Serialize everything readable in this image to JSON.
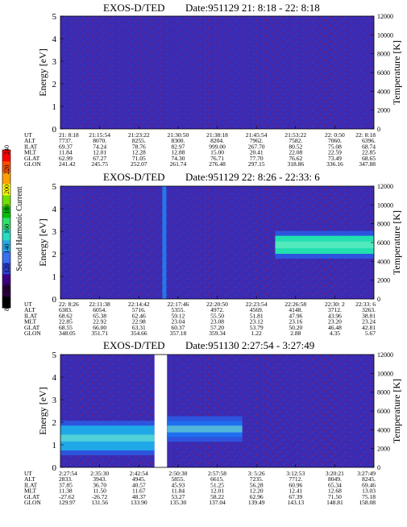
{
  "chart_data": {
    "type": "heatmap",
    "colorbar": {
      "label": "Second Harmonic Current",
      "ticks": [
        "80",
        "100",
        "120",
        "140",
        "160",
        "180",
        "200",
        "220",
        "240"
      ],
      "colors": [
        "#000000",
        "#2a003c",
        "#3d0080",
        "#2b3fd8",
        "#3a6ff0",
        "#25a8e8",
        "#27dcc0",
        "#2fe06a",
        "#00c000",
        "#70e000",
        "#ffff00",
        "#ffa000",
        "#ff5000",
        "#ff0000"
      ]
    },
    "panels": [
      {
        "title": "EXOS-D/TED",
        "date": "Date:951129  21: 8:18 - 22: 8:18",
        "ylabel_left": "Energy [eV]",
        "ylabel_right": "Temperature [K]",
        "y_left_ticks": [
          "0",
          "1",
          "2",
          "3",
          "4",
          "5"
        ],
        "y_right_ticks": [
          "0",
          "2000",
          "4000",
          "6000",
          "8000",
          "10000",
          "12000"
        ],
        "ylim_left": [
          0,
          5
        ],
        "ylim_right": [
          0,
          12000
        ],
        "row_labels": [
          "UT",
          "ALT",
          "ILAT",
          "MLT",
          "GLAT",
          "GLON"
        ],
        "columns": [
          [
            "21: 8:18",
            "7737.",
            "69.37",
            "11.84",
            "62.99",
            "241.42"
          ],
          [
            "21:15:54",
            "8070.",
            "74.24",
            "12.01",
            "67.27",
            "245.75"
          ],
          [
            "21:23:22",
            "8255.",
            "78.76",
            "12.28",
            "71.05",
            "252.07"
          ],
          [
            "21:30:50",
            "8300.",
            "82.97",
            "12.88",
            "74.30",
            "261.74"
          ],
          [
            "21:38:18",
            "8204.",
            "999.00",
            "15.00",
            "76.71",
            "276.48"
          ],
          [
            "21:45:54",
            "7962.",
            "267.70",
            "20.41",
            "77.70",
            "297.15"
          ],
          [
            "21:53:22",
            "7582.",
            "80.52",
            "22.08",
            "76.62",
            "318.86"
          ],
          [
            "22: 0:50",
            "7060.",
            "75.08",
            "22.59",
            "73.49",
            "336.16"
          ],
          [
            "22: 8:18",
            "6396.",
            "68.74",
            "22.85",
            "68.65",
            "347.88"
          ]
        ],
        "features": []
      },
      {
        "title": "EXOS-D/TED",
        "date": "Date:951129  22: 8:26 - 22:33: 6",
        "ylabel_left": "Energy [eV]",
        "ylabel_right": "Temperature [K]",
        "y_left_ticks": [
          "0",
          "1",
          "2",
          "3",
          "4",
          "5"
        ],
        "y_right_ticks": [
          "0",
          "2000",
          "4000",
          "6000",
          "8000",
          "10000",
          "12000"
        ],
        "ylim_left": [
          0,
          5
        ],
        "ylim_right": [
          0,
          12000
        ],
        "row_labels": [
          "UT",
          "ALT",
          "ILAT",
          "MLT",
          "GLAT",
          "GLON"
        ],
        "columns": [
          [
            "22: 8:26",
            "6383.",
            "68.62",
            "22.85",
            "68.55",
            "348.05"
          ],
          [
            "22:11:38",
            "6054.",
            "65.38",
            "22.92",
            "66.00",
            "351.71"
          ],
          [
            "22:14:42",
            "5716.",
            "62.46",
            "22.98",
            "63.31",
            "354.66"
          ],
          [
            "22:17:46",
            "5355.",
            "59.12",
            "23.04",
            "60.37",
            "357.18"
          ],
          [
            "22:20:50",
            "4972.",
            "55.50",
            "23.08",
            "57.20",
            "359.34"
          ],
          [
            "22:23:54",
            "4569.",
            "51.81",
            "23.12",
            "53.79",
            "1.22"
          ],
          [
            "22:26:58",
            "4148.",
            "47.96",
            "23.16",
            "50.20",
            "2.88"
          ],
          [
            "22:30: 2",
            "3712.",
            "43.96",
            "23.20",
            "46.48",
            "4.35"
          ],
          [
            "22:33: 6",
            "3263.",
            "38.81",
            "23.24",
            "42.81",
            "5.67"
          ]
        ],
        "features": [
          {
            "kind": "band",
            "from": 0.685,
            "to": 1.0,
            "energy_center": 2.4,
            "energy_width": 0.8,
            "color": "#22e0b0"
          },
          {
            "kind": "spike",
            "at": 0.33,
            "color": "#1a8af0"
          }
        ]
      },
      {
        "title": "EXOS-D/TED",
        "date": "Date:951130  2:27:54 - 3:27:49",
        "ylabel_left": "Energy [eV]",
        "ylabel_right": "Temperature [K]",
        "y_left_ticks": [
          "0",
          "1",
          "2",
          "3",
          "4",
          "5"
        ],
        "y_right_ticks": [
          "0",
          "2000",
          "4000",
          "6000",
          "8000",
          "10000",
          "12000"
        ],
        "ylim_left": [
          0,
          5
        ],
        "ylim_right": [
          0,
          12000
        ],
        "row_labels": [
          "UT",
          "ALT",
          "ILAT",
          "MLT",
          "GLAT",
          "GLON"
        ],
        "columns": [
          [
            "2:27:54",
            "2833.",
            "37.85",
            "11.38",
            "-27.62",
            "129.97"
          ],
          [
            "2:35:30",
            "3943.",
            "36.70",
            "11.50",
            "-26.72",
            "131.56"
          ],
          [
            "2:42:54",
            "4945.",
            "40.57",
            "11.67",
            "48.37",
            "133.90"
          ],
          [
            "2:50:30",
            "5855.",
            "45.93",
            "11.84",
            "53.27",
            "135.30"
          ],
          [
            "2:57:58",
            "6615.",
            "51.25",
            "12.01",
            "58.22",
            "137.04"
          ],
          [
            "3: 5:26",
            "7235.",
            "56.28",
            "12.20",
            "62.96",
            "139.49"
          ],
          [
            "3:12:53",
            "7712.",
            "60.96",
            "12.41",
            "67.39",
            "143.13"
          ],
          [
            "3:20:21",
            "8049.",
            "65.34",
            "12.68",
            "71.50",
            "148.81"
          ],
          [
            "3:27:49",
            "8245.",
            "69.46",
            "13.03",
            "75.18",
            "158.08"
          ]
        ],
        "features": [
          {
            "kind": "band",
            "from": 0.0,
            "to": 0.3,
            "energy_center": 1.3,
            "energy_width": 1.1,
            "color": "#1fa8e8"
          },
          {
            "kind": "gap",
            "from": 0.3,
            "to": 0.34
          },
          {
            "kind": "band",
            "from": 0.34,
            "to": 0.58,
            "energy_center": 1.7,
            "energy_width": 0.7,
            "color": "#1f6ff0"
          }
        ]
      }
    ]
  }
}
